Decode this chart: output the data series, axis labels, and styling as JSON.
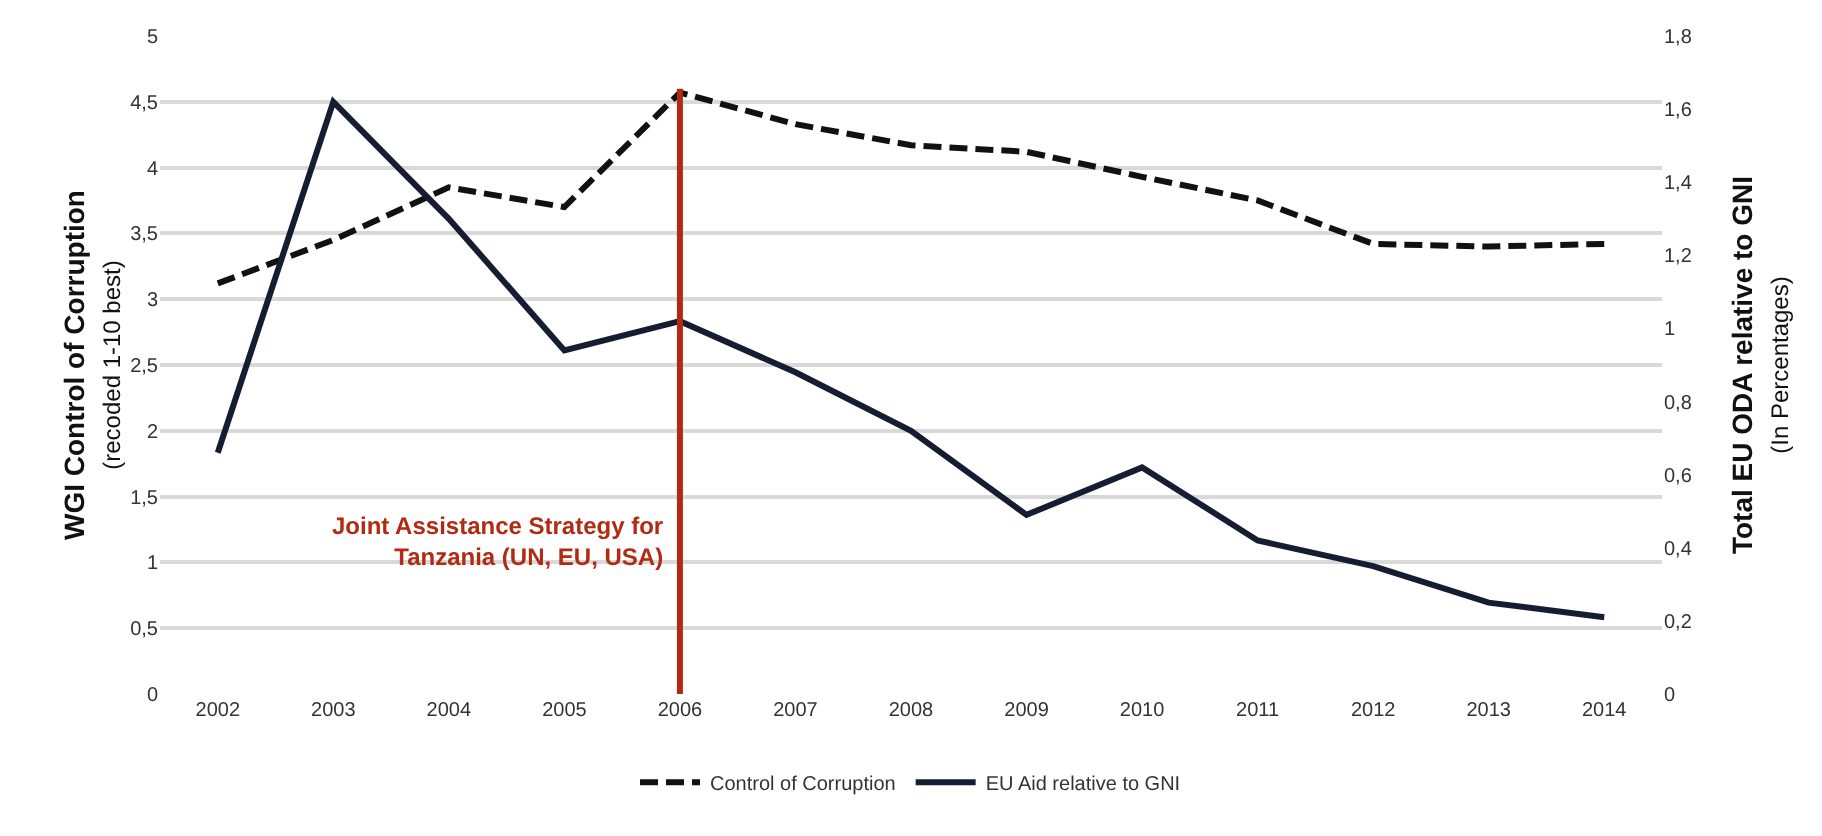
{
  "chart_data": {
    "type": "line",
    "ylabel": "WGI Control of Corruption\n(recoded 1-10 best)",
    "y2label": "Total EU ODA relative to GNI\n(In Percentages)",
    "categories": [
      "2002",
      "2003",
      "2004",
      "2005",
      "2006",
      "2007",
      "2008",
      "2009",
      "2010",
      "2011",
      "2012",
      "2013",
      "2014"
    ],
    "series": [
      {
        "name": "Control of Corruption",
        "color": "#111111",
        "line_style": "dashed",
        "values": [
          3.12,
          3.45,
          3.85,
          3.7,
          4.57,
          4.33,
          4.17,
          4.12,
          3.93,
          3.75,
          3.42,
          3.4,
          3.42
        ]
      },
      {
        "name": "EU Aid relative to GNI",
        "color": "#161d33",
        "line_style": "solid",
        "axis": "y2",
        "values": [
          0.66,
          1.62,
          1.3,
          0.94,
          1.02,
          0.88,
          0.72,
          0.49,
          0.62,
          0.42,
          0.35,
          0.25,
          0.21
        ]
      }
    ],
    "ylim": [
      0,
      5
    ],
    "yticks": [
      0,
      {
        "value": 0.5,
        "label": "0,5"
      },
      1,
      {
        "value": 1.5,
        "label": "1,5"
      },
      2,
      {
        "value": 2.5,
        "label": "2,5"
      },
      3,
      {
        "value": 3.5,
        "label": "3,5"
      },
      4,
      {
        "value": 4.5,
        "label": "4,5"
      },
      5
    ],
    "y2lim": [
      0,
      1.8
    ],
    "y2ticks": [
      0,
      {
        "value": 0.2,
        "label": "0,2"
      },
      {
        "value": 0.4,
        "label": "0,4"
      },
      {
        "value": 0.6,
        "label": "0,6"
      },
      {
        "value": 0.8,
        "label": "0,8"
      },
      1,
      {
        "value": 1.2,
        "label": "1,2"
      },
      {
        "value": 1.4,
        "label": "1,4"
      },
      {
        "value": 1.6,
        "label": "1,6"
      },
      {
        "value": 1.8,
        "label": "1,8"
      }
    ],
    "ref_lines": [
      {
        "axis": "x",
        "value": "2006",
        "label": "Joint Assistance Strategy for\nTanzania (UN, EU, USA)",
        "color": "#b22a12"
      }
    ],
    "grid": "y",
    "legend": "bottom",
    "marker": "none"
  }
}
